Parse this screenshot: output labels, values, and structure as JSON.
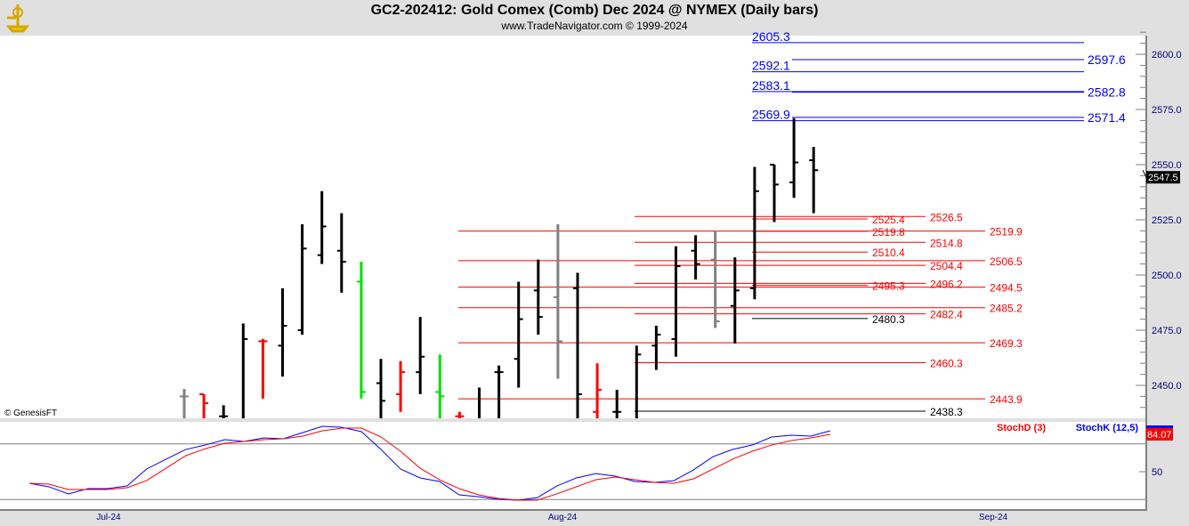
{
  "header": {
    "title": "GC2-202412:  Gold Comex (Comb) Dec 2024 @ NYMEX  (Daily bars)",
    "subtitle": "www.TradeNavigator.com © 1999-2024",
    "logo_icon": "sextant-logo-icon"
  },
  "watermark": "© GenesisFT",
  "chart_data": [
    {
      "type": "ohlc-bar",
      "y_ticks": [
        "2600.0",
        "2575.0",
        "2550.0",
        "2525.0",
        "2500.0",
        "2475.0",
        "2450.0"
      ],
      "ylim": [
        2430,
        2615
      ],
      "x_ticks": [
        "Jul-24",
        "Aug-24",
        "Sep-24"
      ],
      "last_price": "2547.5",
      "colors": {
        "default": "#000000",
        "gray": "#808080",
        "red": "#ff0000",
        "green": "#00e000"
      },
      "bars": [
        {
          "o": 2445,
          "h": 2448.4,
          "l": 2430,
          "c": 2445,
          "color": "gray"
        },
        {
          "o": 2446,
          "h": 2446,
          "l": 2430,
          "c": 2442,
          "color": "red"
        },
        {
          "o": 2436,
          "h": 2441,
          "l": 2430,
          "c": 2436,
          "color": "default"
        },
        {
          "o": 2430,
          "h": 2478,
          "l": 2430,
          "c": 2471,
          "color": "default"
        },
        {
          "o": 2470,
          "h": 2471,
          "l": 2444,
          "c": 2470,
          "color": "red"
        },
        {
          "o": 2468,
          "h": 2494,
          "l": 2454,
          "c": 2477,
          "color": "default"
        },
        {
          "o": 2475,
          "h": 2523,
          "l": 2473,
          "c": 2512,
          "color": "default"
        },
        {
          "o": 2509,
          "h": 2538,
          "l": 2505,
          "c": 2522,
          "color": "default"
        },
        {
          "o": 2511,
          "h": 2528,
          "l": 2492,
          "c": 2506,
          "color": "default"
        },
        {
          "o": 2497,
          "h": 2506,
          "l": 2444,
          "c": 2447,
          "color": "green"
        },
        {
          "o": 2451,
          "h": 2462,
          "l": 2430,
          "c": 2443,
          "color": "default"
        },
        {
          "o": 2446,
          "h": 2461,
          "l": 2438,
          "c": 2456,
          "color": "red"
        },
        {
          "o": 2456,
          "h": 2481,
          "l": 2446,
          "c": 2463,
          "color": "default"
        },
        {
          "o": 2447,
          "h": 2464,
          "l": 2430,
          "c": 2445,
          "color": "green"
        },
        {
          "o": 2436,
          "h": 2438,
          "l": 2430,
          "c": 2436,
          "color": "red"
        },
        {
          "o": 2435,
          "h": 2449,
          "l": 2430,
          "c": 2435,
          "color": "default"
        },
        {
          "o": 2456,
          "h": 2459,
          "l": 2430,
          "c": 2456,
          "color": "default"
        },
        {
          "o": 2462,
          "h": 2497,
          "l": 2449,
          "c": 2480,
          "color": "default"
        },
        {
          "o": 2493,
          "h": 2507,
          "l": 2473,
          "c": 2481,
          "color": "default"
        },
        {
          "o": 2490,
          "h": 2523,
          "l": 2453,
          "c": 2470,
          "color": "gray"
        },
        {
          "o": 2494,
          "h": 2501,
          "l": 2430,
          "c": 2446,
          "color": "default"
        },
        {
          "o": 2438,
          "h": 2460,
          "l": 2430,
          "c": 2448,
          "color": "red"
        },
        {
          "o": 2438,
          "h": 2448,
          "l": 2430,
          "c": 2438,
          "color": "default"
        },
        {
          "o": 2430,
          "h": 2468,
          "l": 2430,
          "c": 2464,
          "color": "default"
        },
        {
          "o": 2468,
          "h": 2477,
          "l": 2457,
          "c": 2473,
          "color": "default"
        },
        {
          "o": 2471,
          "h": 2513,
          "l": 2463,
          "c": 2504,
          "color": "default"
        },
        {
          "o": 2511,
          "h": 2518,
          "l": 2498,
          "c": 2505,
          "color": "default"
        },
        {
          "o": 2507,
          "h": 2520,
          "l": 2476,
          "c": 2479,
          "color": "gray"
        },
        {
          "o": 2486,
          "h": 2508,
          "l": 2469,
          "c": 2493,
          "color": "default"
        },
        {
          "o": 2494,
          "h": 2549,
          "l": 2489,
          "c": 2538,
          "color": "default"
        },
        {
          "o": 2550,
          "h": 2550,
          "l": 2524,
          "c": 2541,
          "color": "default"
        },
        {
          "o": 2542,
          "h": 2571,
          "l": 2535,
          "c": 2551,
          "color": "default"
        },
        {
          "o": 2552,
          "h": 2558,
          "l": 2528,
          "c": 2547.5,
          "color": "default"
        }
      ],
      "levels": [
        {
          "value": 2605.3,
          "label": "2605.3",
          "color": "#0000ff",
          "group": "blue-left"
        },
        {
          "value": 2597.6,
          "label": "2597.6",
          "color": "#0000ff",
          "group": "blue-right"
        },
        {
          "value": 2592.1,
          "label": "2592.1",
          "color": "#0000ff",
          "group": "blue-left"
        },
        {
          "value": 2583.1,
          "label": "2583.1",
          "color": "#0000ff",
          "group": "blue-left"
        },
        {
          "value": 2582.8,
          "label": "2582.8",
          "color": "#0000ff",
          "group": "blue-right"
        },
        {
          "value": 2569.9,
          "label": "2569.9",
          "color": "#0000ff",
          "group": "blue-left"
        },
        {
          "value": 2571.4,
          "label": "2571.4",
          "color": "#0000ff",
          "group": "blue-right"
        },
        {
          "value": 2526.5,
          "label": "2526.5",
          "color": "#ff0000",
          "group": "mid"
        },
        {
          "value": 2525.4,
          "label": "2525.4",
          "color": "#ff0000",
          "group": "short"
        },
        {
          "value": 2519.9,
          "label": "2519.9",
          "color": "#ff0000",
          "group": "long"
        },
        {
          "value": 2519.8,
          "label": "2519.8",
          "color": "#ff0000",
          "group": "short"
        },
        {
          "value": 2514.8,
          "label": "2514.8",
          "color": "#ff0000",
          "group": "mid"
        },
        {
          "value": 2510.4,
          "label": "2510.4",
          "color": "#ff0000",
          "group": "short"
        },
        {
          "value": 2506.5,
          "label": "2506.5",
          "color": "#ff0000",
          "group": "long"
        },
        {
          "value": 2504.4,
          "label": "2504.4",
          "color": "#ff0000",
          "group": "mid"
        },
        {
          "value": 2496.2,
          "label": "2496.2",
          "color": "#ff0000",
          "group": "mid"
        },
        {
          "value": 2495.3,
          "label": "2495.3",
          "color": "#ff0000",
          "group": "short"
        },
        {
          "value": 2494.5,
          "label": "2494.5",
          "color": "#ff0000",
          "group": "long"
        },
        {
          "value": 2485.2,
          "label": "2485.2",
          "color": "#ff0000",
          "group": "long"
        },
        {
          "value": 2482.4,
          "label": "2482.4",
          "color": "#ff0000",
          "group": "mid"
        },
        {
          "value": 2480.3,
          "label": "2480.3",
          "color": "#000000",
          "group": "short"
        },
        {
          "value": 2469.3,
          "label": "2469.3",
          "color": "#ff0000",
          "group": "long"
        },
        {
          "value": 2460.3,
          "label": "2460.3",
          "color": "#ff0000",
          "group": "mid"
        },
        {
          "value": 2443.9,
          "label": "2443.9",
          "color": "#ff0000",
          "group": "long"
        },
        {
          "value": 2438.3,
          "label": "2438.3",
          "color": "#000000",
          "group": "mid"
        }
      ]
    },
    {
      "type": "line",
      "legend": [
        "StochD (3)",
        "StochK (12,5)"
      ],
      "y_ticks": [
        "50"
      ],
      "ylim": [
        0,
        100
      ],
      "reference_lines": [
        20,
        80
      ],
      "last_value": "84.07",
      "series": [
        {
          "name": "StochK (12,5)",
          "color": "#0000ff",
          "values": [
            37.5,
            33.7,
            26,
            31.7,
            31.7,
            34.6,
            52.9,
            63.5,
            74,
            78.8,
            84.6,
            82.7,
            86.5,
            85.6,
            92.3,
            99,
            98,
            93.3,
            74,
            52.9,
            43.3,
            39.4,
            25,
            23,
            20.2,
            19.2,
            22,
            34.6,
            43.3,
            48,
            45.2,
            39.4,
            38.5,
            40.4,
            52,
            66.3,
            74,
            78.8,
            87.5,
            89.4,
            88.5,
            94.2
          ]
        },
        {
          "name": "StochD (3)",
          "color": "#ff0000",
          "values": [
            37.5,
            36.5,
            30.8,
            30.8,
            30.8,
            32.7,
            40.4,
            53.8,
            67.3,
            74.8,
            80.8,
            82.7,
            84.6,
            85.6,
            88.5,
            94.2,
            97.1,
            97.1,
            87.5,
            72.1,
            53.8,
            41.3,
            31.7,
            25,
            21.2,
            19.2,
            19.2,
            26,
            33.7,
            41.3,
            44.2,
            41.3,
            38.5,
            37.5,
            42.3,
            52.9,
            63.5,
            72.1,
            78.8,
            83.7,
            86.5,
            90.4
          ]
        }
      ]
    }
  ]
}
